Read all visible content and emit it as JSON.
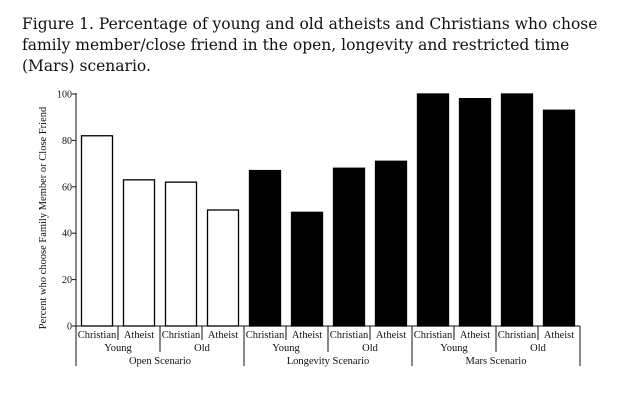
{
  "figure": {
    "caption": "Figure 1. Percentage of young and old atheists and Christians who chose family member/close friend in the open, longevity and restricted time (Mars) scenario."
  },
  "chart_data": {
    "type": "bar",
    "ylabel": "Percent who choose Family Member or Close Friend",
    "ylim": [
      0,
      100
    ],
    "yticks": [
      "0",
      "20",
      "40",
      "60",
      "80",
      "100"
    ],
    "grid": false,
    "categories": [
      "Christian",
      "Atheist",
      "Christian",
      "Atheist",
      "Christian",
      "Atheist",
      "Christian",
      "Atheist",
      "Christian",
      "Atheist",
      "Christian",
      "Atheist"
    ],
    "values": [
      82,
      63,
      62,
      50,
      67,
      49,
      68,
      71,
      100,
      98,
      100,
      93
    ],
    "fills": [
      "#ffffff",
      "#ffffff",
      "#ffffff",
      "#ffffff",
      "#000000",
      "#000000",
      "#000000",
      "#000000",
      "#000000",
      "#000000",
      "#000000",
      "#000000"
    ],
    "age_groups": [
      "Young",
      "Old",
      "Young",
      "Old",
      "Young",
      "Old"
    ],
    "scenarios": [
      "Open Scenario",
      "Longevity Scenario",
      "Mars Scenario"
    ]
  }
}
